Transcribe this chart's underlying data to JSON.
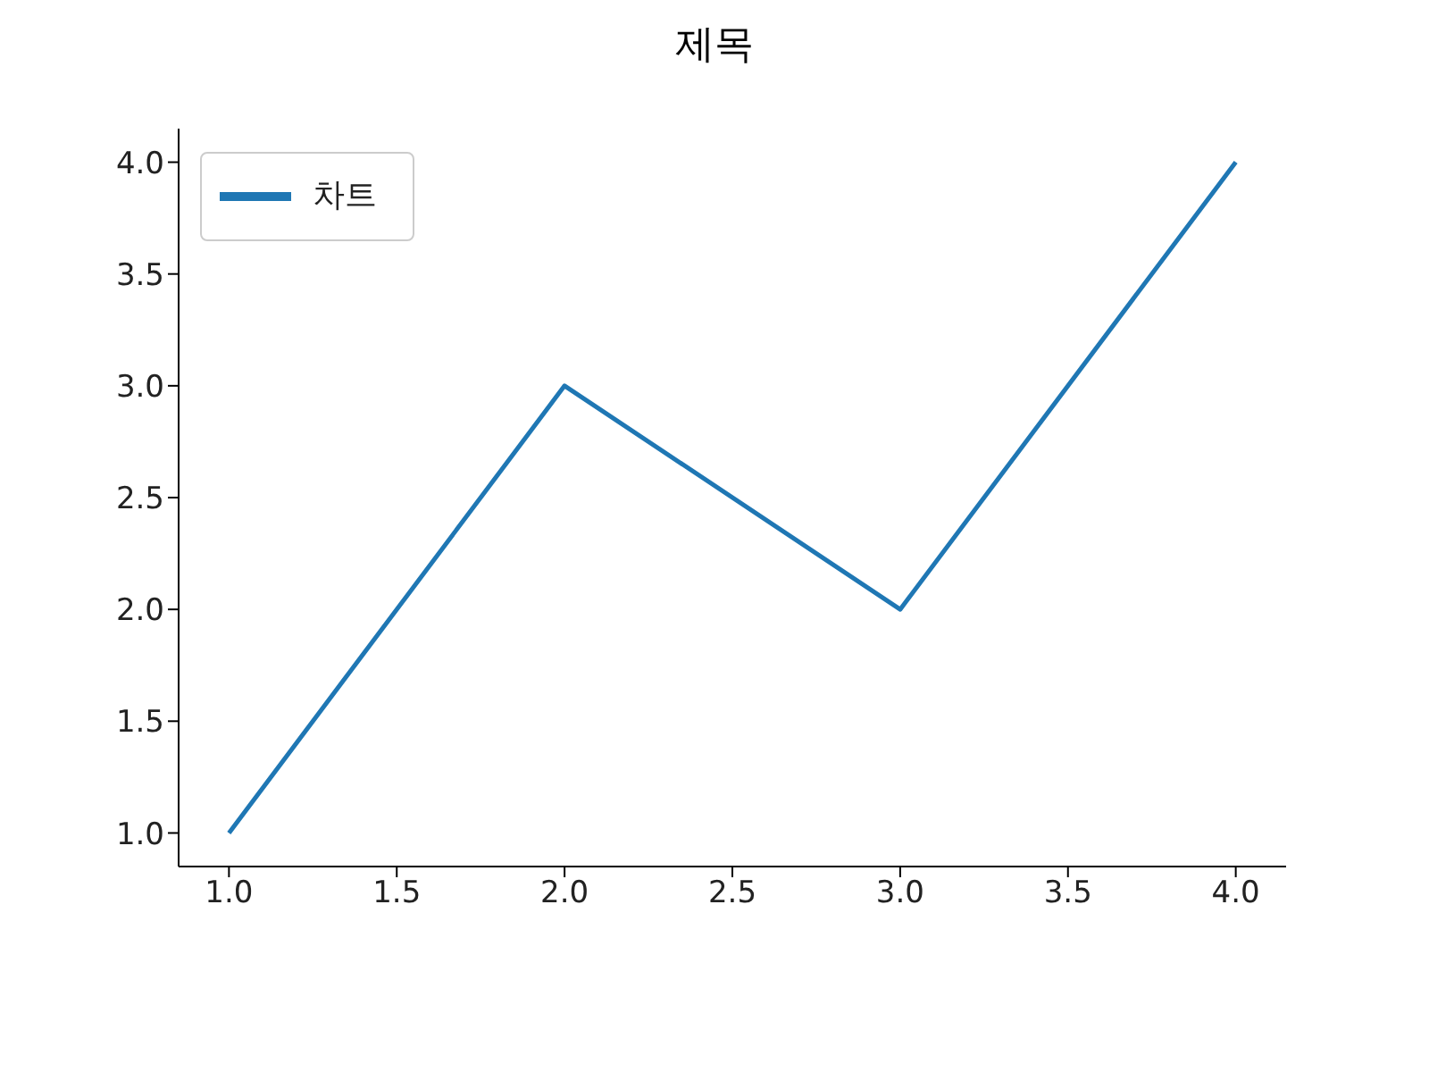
{
  "chart_data": {
    "type": "line",
    "title": "제목",
    "x": [
      1,
      2,
      3,
      4
    ],
    "series": [
      {
        "name": "차트",
        "color": "#1f77b4",
        "values": [
          1,
          3,
          2,
          4
        ]
      }
    ],
    "xlim": [
      0.85,
      4.15
    ],
    "ylim": [
      0.85,
      4.15
    ],
    "xticks": [
      {
        "value": 1,
        "label": "1.0"
      },
      {
        "value": 1.5,
        "label": "1.5"
      },
      {
        "value": 2,
        "label": "2.0"
      },
      {
        "value": 2.5,
        "label": "2.5"
      },
      {
        "value": 3,
        "label": "3.0"
      },
      {
        "value": 3.5,
        "label": "3.5"
      },
      {
        "value": 4,
        "label": "4.0"
      }
    ],
    "yticks": [
      {
        "value": 1,
        "label": "1.0"
      },
      {
        "value": 1.5,
        "label": "1.5"
      },
      {
        "value": 2,
        "label": "2.0"
      },
      {
        "value": 2.5,
        "label": "2.5"
      },
      {
        "value": 3,
        "label": "3.0"
      },
      {
        "value": 3.5,
        "label": "3.5"
      },
      {
        "value": 4,
        "label": "4.0"
      }
    ],
    "legend": "top left",
    "grid": false,
    "marker": "none",
    "line_style": "solid"
  }
}
